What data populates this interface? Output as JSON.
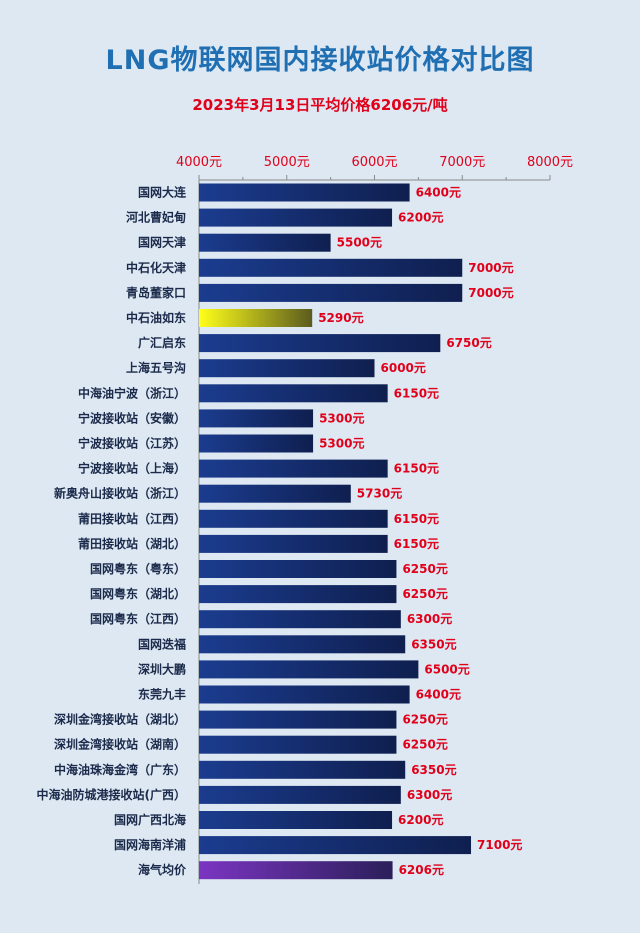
{
  "title": "LNG物联网国内接收站价格对比图",
  "subtitle": "2023年3月13日平均价格6206元/吨",
  "chart_data": {
    "type": "bar",
    "orientation": "horizontal",
    "title": "LNG物联网国内接收站价格对比图",
    "subtitle": "2023年3月13日平均价格6206元/吨",
    "xlim": [
      4000,
      8000
    ],
    "xticks": [
      4000,
      5000,
      6000,
      7000,
      8000
    ],
    "xtick_labels": [
      "4000元",
      "5000元",
      "6000元",
      "7000元",
      "8000元"
    ],
    "axis_position": "top",
    "grid": false,
    "categories": [
      "国网大连",
      "河北曹妃甸",
      "国网天津",
      "中石化天津",
      "青岛董家口",
      "中石油如东",
      "广汇启东",
      "上海五号沟",
      "中海油宁波（浙江）",
      "宁波接收站（安徽）",
      "宁波接收站（江苏）",
      "宁波接收站（上海）",
      "新奥舟山接收站（浙江）",
      "莆田接收站（江西）",
      "莆田接收站（湖北）",
      "国网粤东（粤东）",
      "国网粤东（湖北）",
      "国网粤东（江西）",
      "国网迭福",
      "深圳大鹏",
      "东莞九丰",
      "深圳金湾接收站（湖北）",
      "深圳金湾接收站（湖南）",
      "中海油珠海金湾（广东）",
      "中海油防城港接收站(广西）",
      "国网广西北海",
      "国网海南洋浦",
      "海气均价"
    ],
    "values": [
      6400,
      6200,
      5500,
      7000,
      7000,
      5290,
      6750,
      6000,
      6150,
      5300,
      5300,
      6150,
      5730,
      6150,
      6150,
      6250,
      6250,
      6300,
      6350,
      6500,
      6400,
      6250,
      6250,
      6350,
      6300,
      6200,
      7100,
      6206
    ],
    "value_labels": [
      "6400元",
      "6200元",
      "5500元",
      "7000元",
      "7000元",
      "5290元",
      "6750元",
      "6000元",
      "6150元",
      "5300元",
      "5300元",
      "6150元",
      "5730元",
      "6150元",
      "6150元",
      "6250元",
      "6250元",
      "6300元",
      "6350元",
      "6500元",
      "6400元",
      "6250元",
      "6250元",
      "6350元",
      "6300元",
      "6200元",
      "7100元",
      "6206元"
    ],
    "highlight": {
      "中石油如东": "yellow",
      "海气均价": "purple"
    }
  },
  "colors": {
    "background": "#dde8f3",
    "bar_start": "#1b3c8f",
    "bar_end": "#0f1f4f",
    "highlight_yellow_start": "#ffff1a",
    "highlight_yellow_end": "#5b5b1e",
    "highlight_purple_start": "#7b35c2",
    "highlight_purple_end": "#2b1f5a",
    "value_text": "#e0001a",
    "title": "#1f6fb2"
  }
}
